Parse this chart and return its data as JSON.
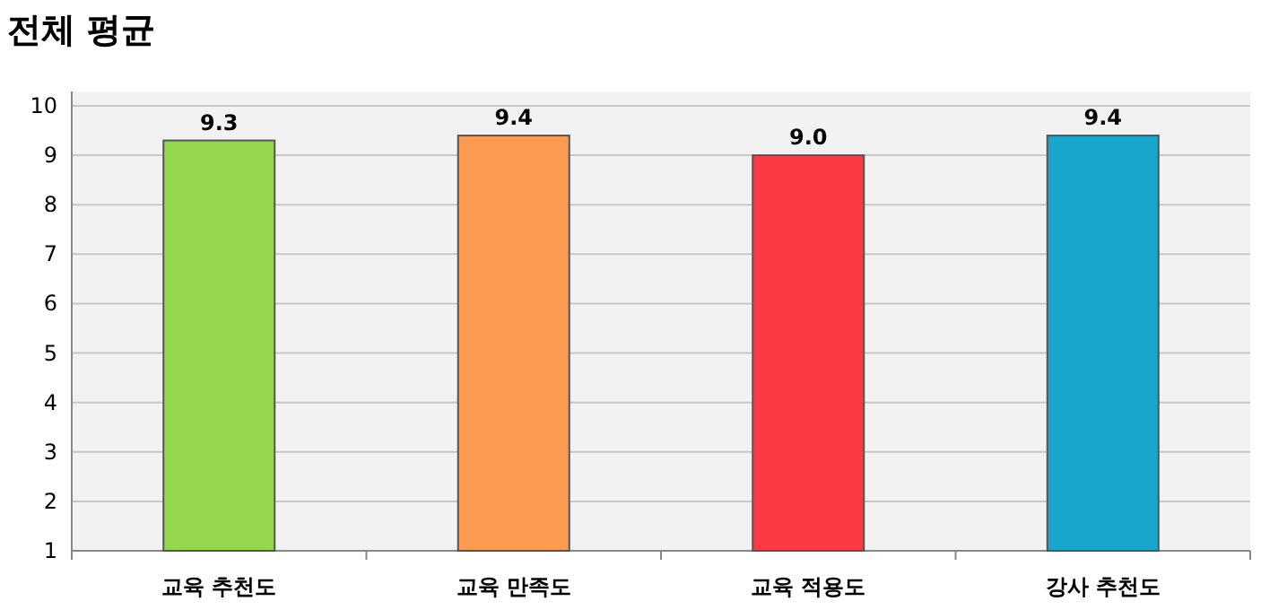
{
  "chart_data": {
    "type": "bar",
    "title": "전체 평균",
    "categories": [
      "교육 추천도",
      "교육 만족도",
      "교육 적용도",
      "강사 추천도"
    ],
    "values": [
      9.3,
      9.4,
      9.0,
      9.4
    ],
    "colors": [
      "#95d64f",
      "#fd9b52",
      "#fc3a45",
      "#18a7cc"
    ],
    "ylim": [
      1,
      10
    ],
    "yticks": [
      1,
      2,
      3,
      4,
      5,
      6,
      7,
      8,
      9,
      10
    ],
    "value_labels": [
      "9.3",
      "9.4",
      "9.0",
      "9.4"
    ],
    "grid": "y"
  }
}
